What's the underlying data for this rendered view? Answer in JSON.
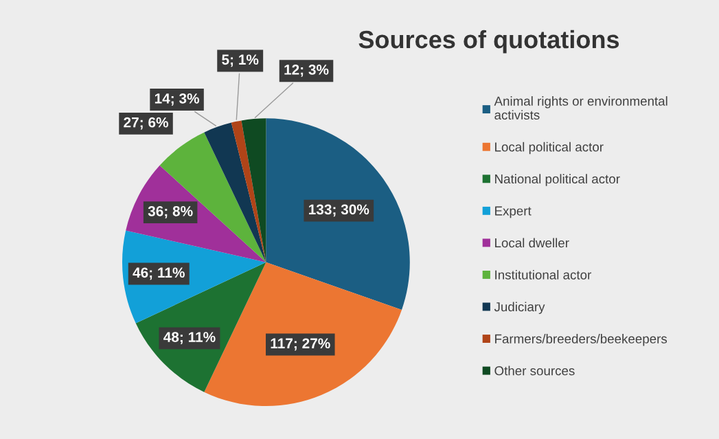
{
  "chart_data": {
    "type": "pie",
    "title": "Sources of quotations",
    "categories": [
      "Animal rights or environmental activists",
      "Local political actor",
      "National political actor",
      "Expert",
      "Local dweller",
      "Institutional actor",
      "Judiciary",
      "Farmers/breeders/beekeepers",
      "Other sources"
    ],
    "values": [
      133,
      117,
      48,
      46,
      36,
      27,
      14,
      5,
      12
    ],
    "value_labels": [
      "133; 30%",
      "117; 27%",
      "48; 11%",
      "46; 11%",
      "36; 8%",
      "27; 6%",
      "14; 3%",
      "5; 1%",
      "12; 3%"
    ],
    "colors": [
      "#1b5e83",
      "#ec7632",
      "#1d7232",
      "#12a0d8",
      "#a0309a",
      "#5db33c",
      "#113752",
      "#b04418",
      "#0f4a22"
    ],
    "legend": "right"
  }
}
